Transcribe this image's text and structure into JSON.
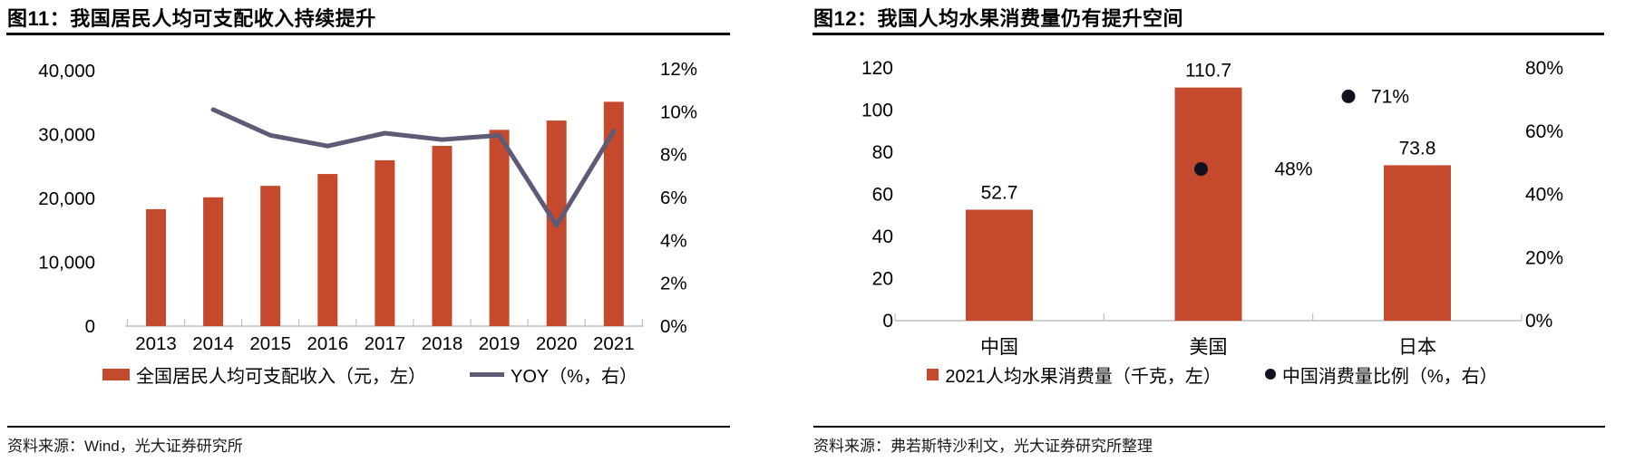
{
  "colors": {
    "bar": "#C5492D",
    "line": "#5E5B77",
    "dot": "#12121F",
    "axis_gray": "#BFBFBF",
    "rule_black": "#000000"
  },
  "panels": [
    {
      "title": "图11：我国居民人均可支配收入持续提升",
      "legend": [
        {
          "marker": "bar-swatch",
          "label": "全国居民人均可支配收入（元，左）"
        },
        {
          "marker": "line-swatch",
          "label": "YOY（%，右）"
        }
      ],
      "source": "资料来源：Wind，光大证券研究所"
    },
    {
      "title": "图12：我国人均水果消费量仍有提升空间",
      "legend": [
        {
          "marker": "square-swatch",
          "label": "2021人均水果消费量（千克，左）"
        },
        {
          "marker": "dot-swatch",
          "label": "中国消费量比例（%，右）"
        }
      ],
      "source": "资料来源：弗若斯特沙利文，光大证券研究所整理"
    }
  ],
  "chart_data": [
    {
      "type": "bar",
      "title": "图11：我国居民人均可支配收入持续提升",
      "categories": [
        "2013",
        "2014",
        "2015",
        "2016",
        "2017",
        "2018",
        "2019",
        "2020",
        "2021"
      ],
      "series": [
        {
          "name": "全国居民人均可支配收入（元，左）",
          "type": "bar",
          "axis": "left",
          "values": [
            18311,
            20167,
            21966,
            23821,
            25974,
            28228,
            30733,
            32189,
            35128
          ]
        },
        {
          "name": "YOY（%，右）",
          "type": "line",
          "axis": "right",
          "values": [
            null,
            10.1,
            8.9,
            8.4,
            9.0,
            8.7,
            8.9,
            4.7,
            9.1
          ]
        }
      ],
      "left_axis": {
        "min": 0,
        "max": 40000,
        "tick_values": [
          40000,
          30000,
          20000,
          10000,
          0
        ],
        "tick_labels": [
          "40,000",
          "30,000",
          "20,000",
          "10,000",
          "0"
        ]
      },
      "right_axis": {
        "min": 0,
        "max": 12,
        "tick_values": [
          12,
          10,
          8,
          6,
          4,
          2,
          0
        ],
        "tick_labels": [
          "12%",
          "10%",
          "8%",
          "6%",
          "4%",
          "2%",
          "0%"
        ]
      },
      "grid": false,
      "legend_position": "bottom"
    },
    {
      "type": "bar",
      "title": "图12：我国人均水果消费量仍有提升空间",
      "categories": [
        "中国",
        "美国",
        "日本"
      ],
      "series": [
        {
          "name": "2021人均水果消费量（千克，左）",
          "type": "bar",
          "axis": "left",
          "values": [
            52.7,
            110.7,
            73.8
          ],
          "data_labels": [
            "52.7",
            "110.7",
            "73.8"
          ]
        },
        {
          "name": "中国消费量比例（%，右）",
          "type": "scatter",
          "axis": "right",
          "values": [
            null,
            48,
            71
          ],
          "data_labels": [
            null,
            "48%",
            "71%"
          ]
        }
      ],
      "left_axis": {
        "min": 0,
        "max": 120,
        "tick_values": [
          120,
          100,
          80,
          60,
          40,
          20,
          0
        ],
        "tick_labels": [
          "120",
          "100",
          "80",
          "60",
          "40",
          "20",
          "0"
        ]
      },
      "right_axis": {
        "min": 0,
        "max": 80,
        "tick_values": [
          80,
          60,
          40,
          20,
          0
        ],
        "tick_labels": [
          "80%",
          "60%",
          "40%",
          "20%",
          "0%"
        ]
      },
      "grid": false,
      "legend_position": "bottom"
    }
  ]
}
